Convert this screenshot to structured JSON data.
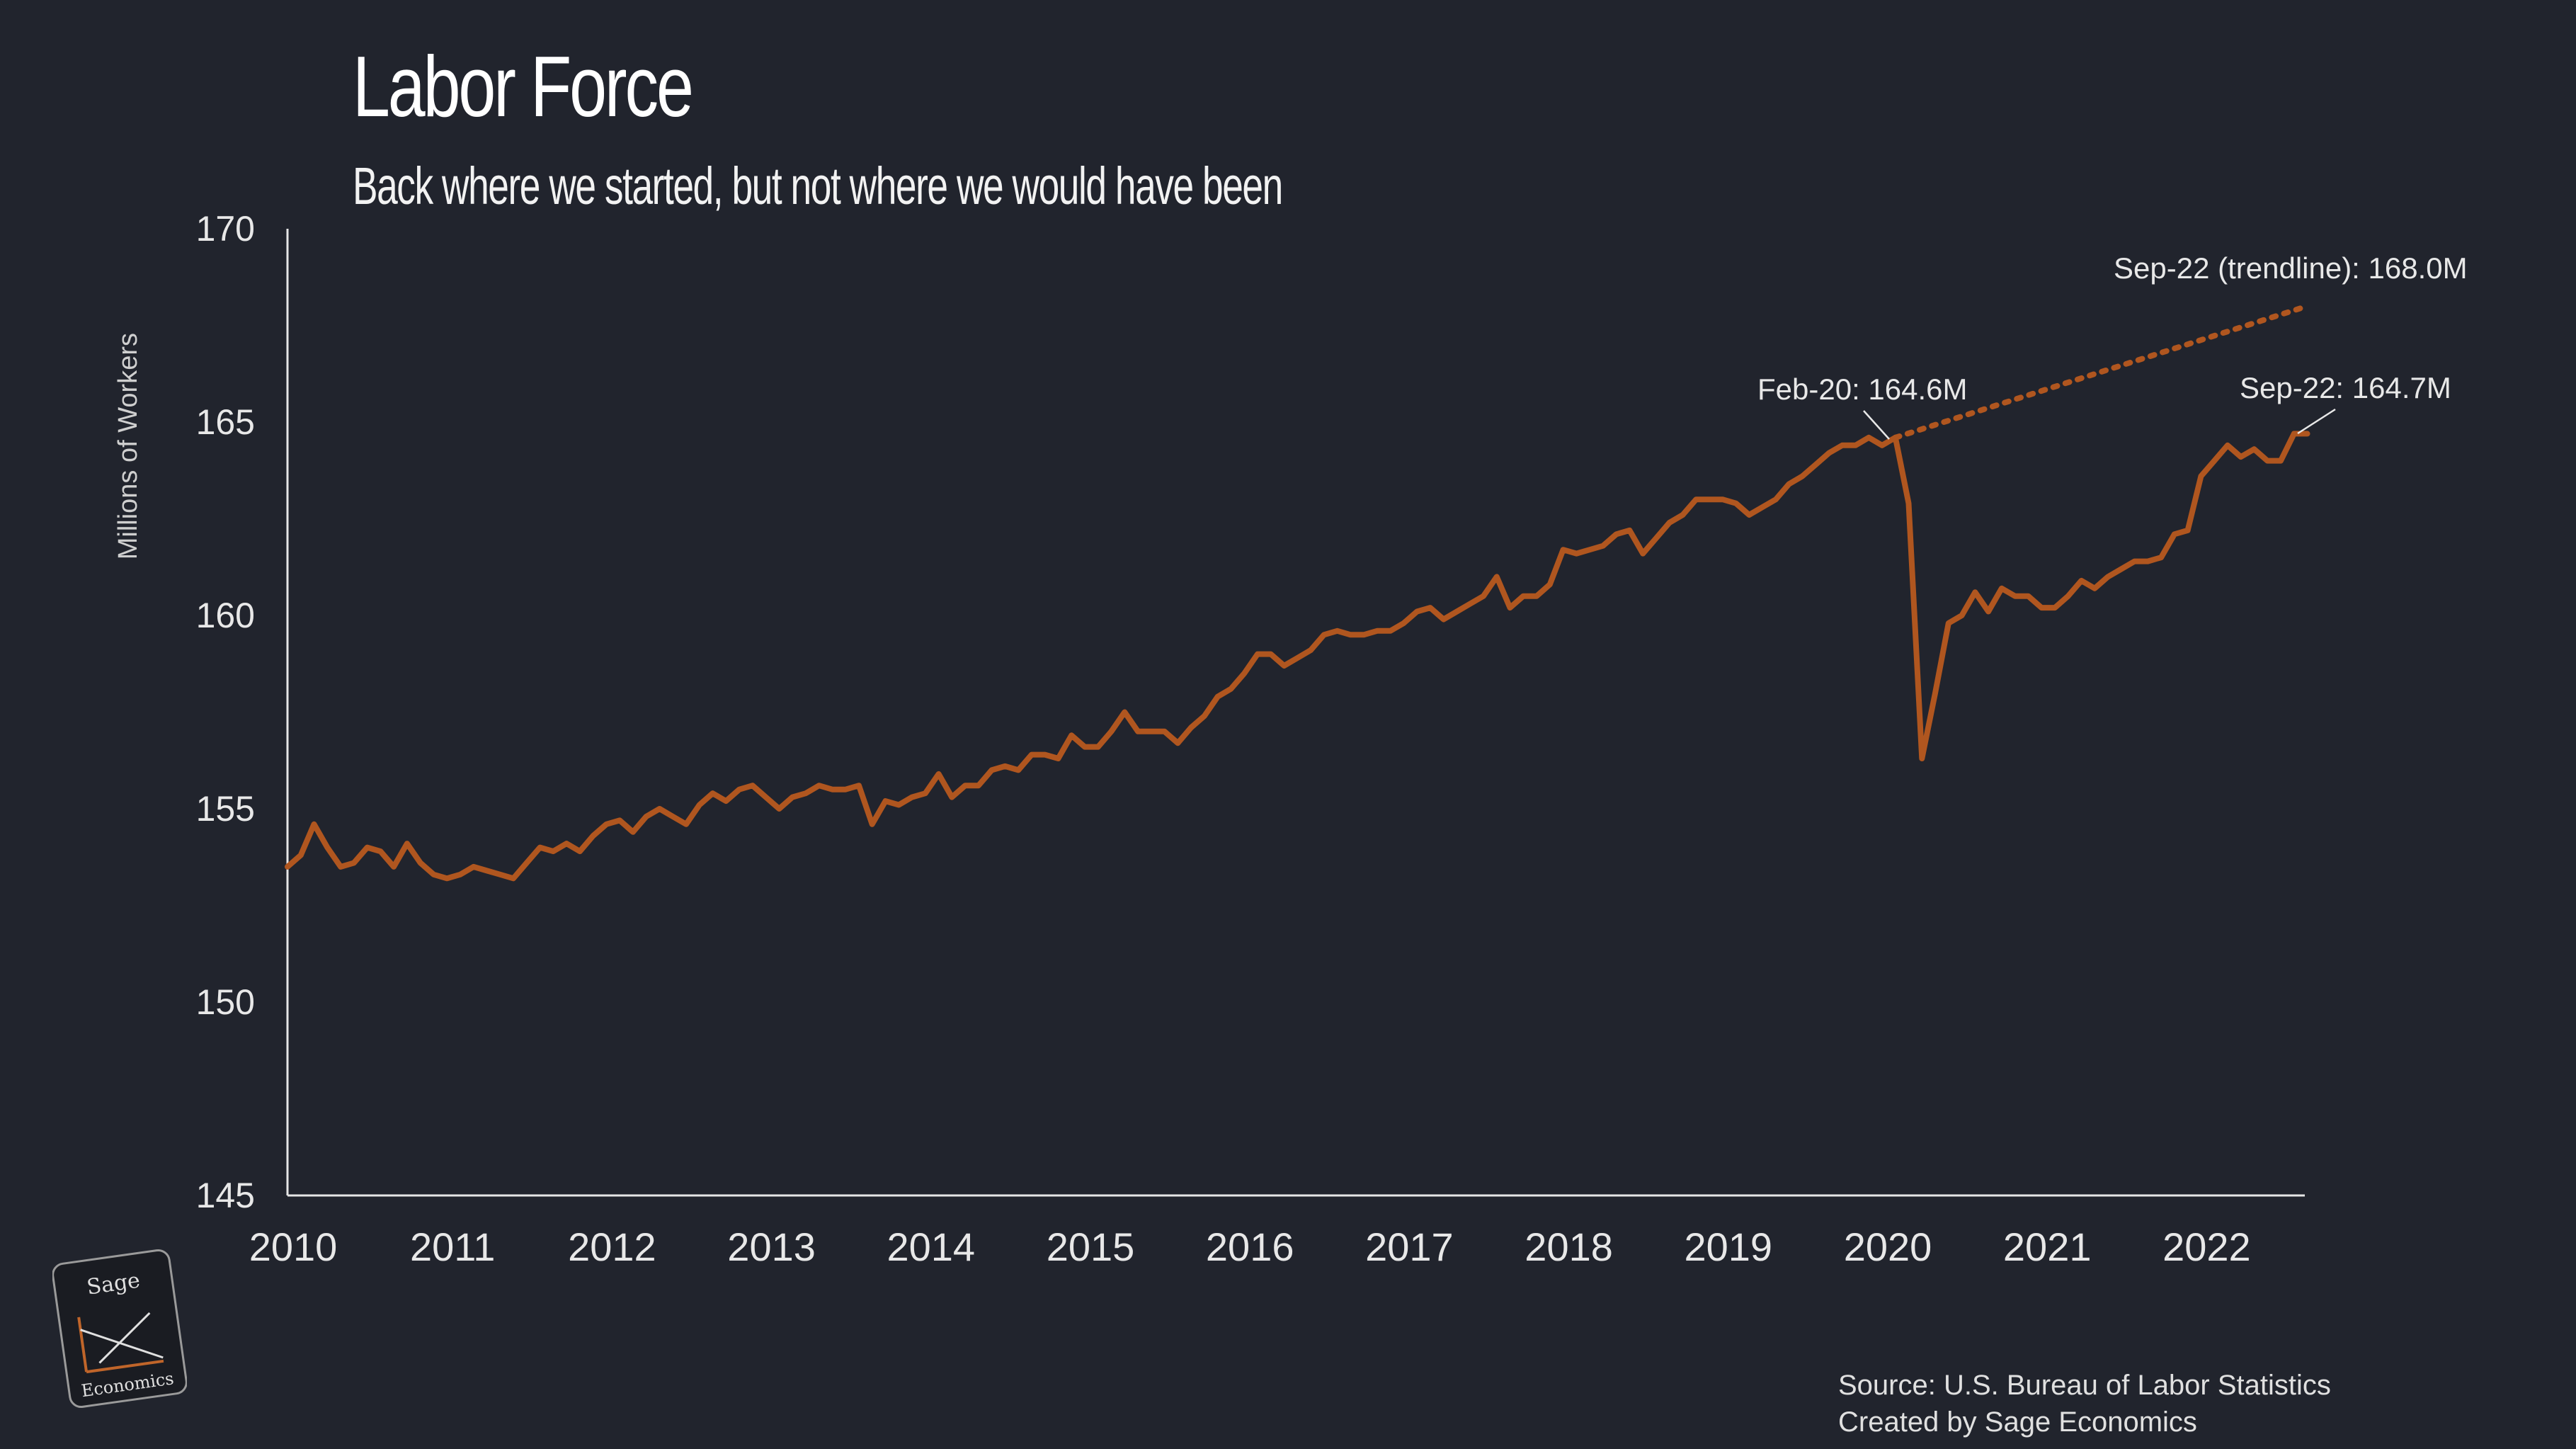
{
  "header": {
    "title": "Labor Force",
    "subtitle": "Back where we started, but not where we would have been"
  },
  "footer": {
    "source": "Source: U.S. Bureau of Labor Statistics",
    "credit": "Created by Sage Economics"
  },
  "logo": {
    "top_text": "Sage",
    "bottom_text": "Economics",
    "icon": "sage-economics-logo-icon"
  },
  "colors": {
    "background": "#21242d",
    "line": "#b0561f",
    "axis": "#e6e6e6",
    "text": "#e8e8e8"
  },
  "chart_data": {
    "type": "line",
    "title": "Labor Force",
    "subtitle": "Back where we started, but not where we would have been",
    "ylabel": "Millions of Workers",
    "xlabel": "",
    "ylim": [
      145,
      170
    ],
    "xlim": [
      2010.0,
      2022.75
    ],
    "grid": false,
    "yticks": [
      "145",
      "150",
      "155",
      "160",
      "165",
      "170"
    ],
    "xticks": [
      "2010",
      "2011",
      "2012",
      "2013",
      "2014",
      "2015",
      "2016",
      "2017",
      "2018",
      "2019",
      "2020",
      "2021",
      "2022"
    ],
    "series": [
      {
        "x_start": "2010-01",
        "x_end": "2022-09",
        "frequency": "monthly",
        "values": [
          153.5,
          153.8,
          154.6,
          154.0,
          153.5,
          153.6,
          154.0,
          153.9,
          153.5,
          154.1,
          153.6,
          153.3,
          153.2,
          153.3,
          153.5,
          153.4,
          153.3,
          153.2,
          153.6,
          154.0,
          153.9,
          154.1,
          153.9,
          154.3,
          154.6,
          154.7,
          154.4,
          154.8,
          155.0,
          154.8,
          154.6,
          155.1,
          155.4,
          155.2,
          155.5,
          155.6,
          155.3,
          155.0,
          155.3,
          155.4,
          155.6,
          155.5,
          155.5,
          155.6,
          154.6,
          155.2,
          155.1,
          155.3,
          155.4,
          155.9,
          155.3,
          155.6,
          155.6,
          156.0,
          156.1,
          156.0,
          156.4,
          156.4,
          156.3,
          156.9,
          156.6,
          156.6,
          157.0,
          157.5,
          157.0,
          157.0,
          157.0,
          156.7,
          157.1,
          157.4,
          157.9,
          158.1,
          158.5,
          159.0,
          159.0,
          158.7,
          158.9,
          159.1,
          159.5,
          159.6,
          159.5,
          159.5,
          159.6,
          159.6,
          159.8,
          160.1,
          160.2,
          159.9,
          160.1,
          160.3,
          160.5,
          161.0,
          160.2,
          160.5,
          160.5,
          160.8,
          161.7,
          161.6,
          161.7,
          161.8,
          162.1,
          162.2,
          161.6,
          162.0,
          162.4,
          162.6,
          163.0,
          163.0,
          163.0,
          162.9,
          162.6,
          162.8,
          163.0,
          163.4,
          163.6,
          163.9,
          164.2,
          164.4,
          164.4,
          164.6,
          164.4,
          164.6,
          162.9,
          156.3,
          158.0,
          159.8,
          160.0,
          160.6,
          160.1,
          160.7,
          160.5,
          160.5,
          160.2,
          160.2,
          160.5,
          160.9,
          160.7,
          161.0,
          161.2,
          161.4,
          161.4,
          161.5,
          162.1,
          162.2,
          163.6,
          164.0,
          164.4,
          164.1,
          164.3,
          164.0,
          164.0,
          164.7,
          164.7
        ]
      },
      {
        "style": "dotted",
        "points": [
          {
            "x": "2020-02",
            "y": 164.6
          },
          {
            "x": "2022-09",
            "y": 168.0
          }
        ]
      }
    ],
    "annotations": [
      {
        "text": "Feb-20: 164.6M",
        "x": "2020-02",
        "y": 164.6
      },
      {
        "text": "Sep-22 (trendline): 168.0M",
        "x": "2022-09",
        "y": 168.0
      },
      {
        "text": "Sep-22: 164.7M",
        "x": "2022-09",
        "y": 164.7
      }
    ]
  }
}
